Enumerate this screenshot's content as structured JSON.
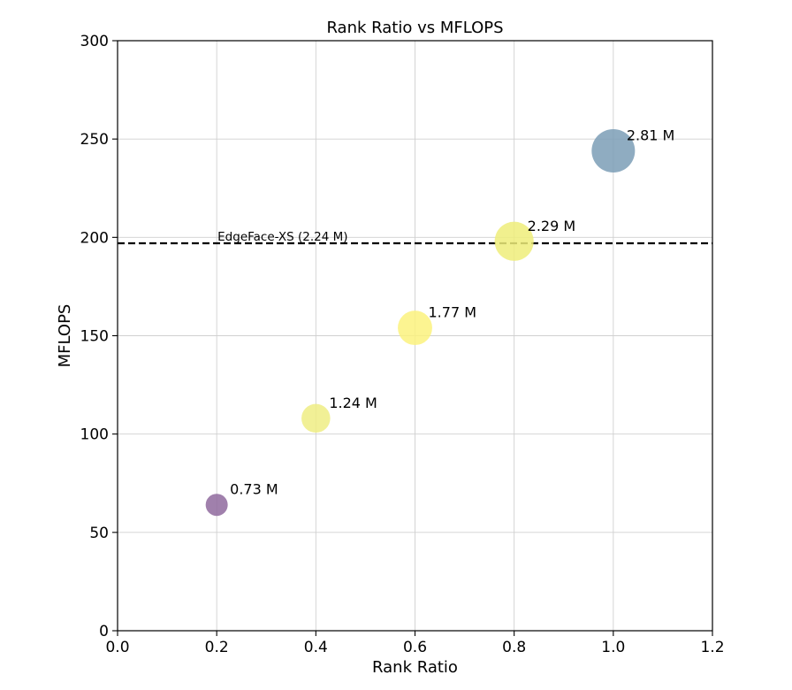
{
  "chart_data": {
    "type": "scatter",
    "title": "Rank Ratio vs MFLOPS",
    "xlabel": "Rank Ratio",
    "ylabel": "MFLOPS",
    "xlim": [
      0.0,
      1.2
    ],
    "ylim": [
      0,
      300
    ],
    "xticks": [
      "0.0",
      "0.2",
      "0.4",
      "0.6",
      "0.8",
      "1.0",
      "1.2"
    ],
    "yticks": [
      "0",
      "50",
      "100",
      "150",
      "200",
      "250",
      "300"
    ],
    "grid": true,
    "points": [
      {
        "x": 0.2,
        "y": 64,
        "label": "0.73 M",
        "params_m": 0.73,
        "color": "#8f6a9d"
      },
      {
        "x": 0.4,
        "y": 108,
        "label": "1.24 M",
        "params_m": 1.24,
        "color": "#eeed84"
      },
      {
        "x": 0.6,
        "y": 154,
        "label": "1.77 M",
        "params_m": 1.77,
        "color": "#fbf27e"
      },
      {
        "x": 0.8,
        "y": 198,
        "label": "2.29 M",
        "params_m": 2.29,
        "color": "#eeed7a"
      },
      {
        "x": 1.0,
        "y": 244,
        "label": "2.81 M",
        "params_m": 2.81,
        "color": "#7b9db6"
      }
    ],
    "reference_line": {
      "y": 197,
      "label": "EdgeFace-XS (2.24 M)",
      "style": "dashed",
      "color": "#000000"
    }
  }
}
